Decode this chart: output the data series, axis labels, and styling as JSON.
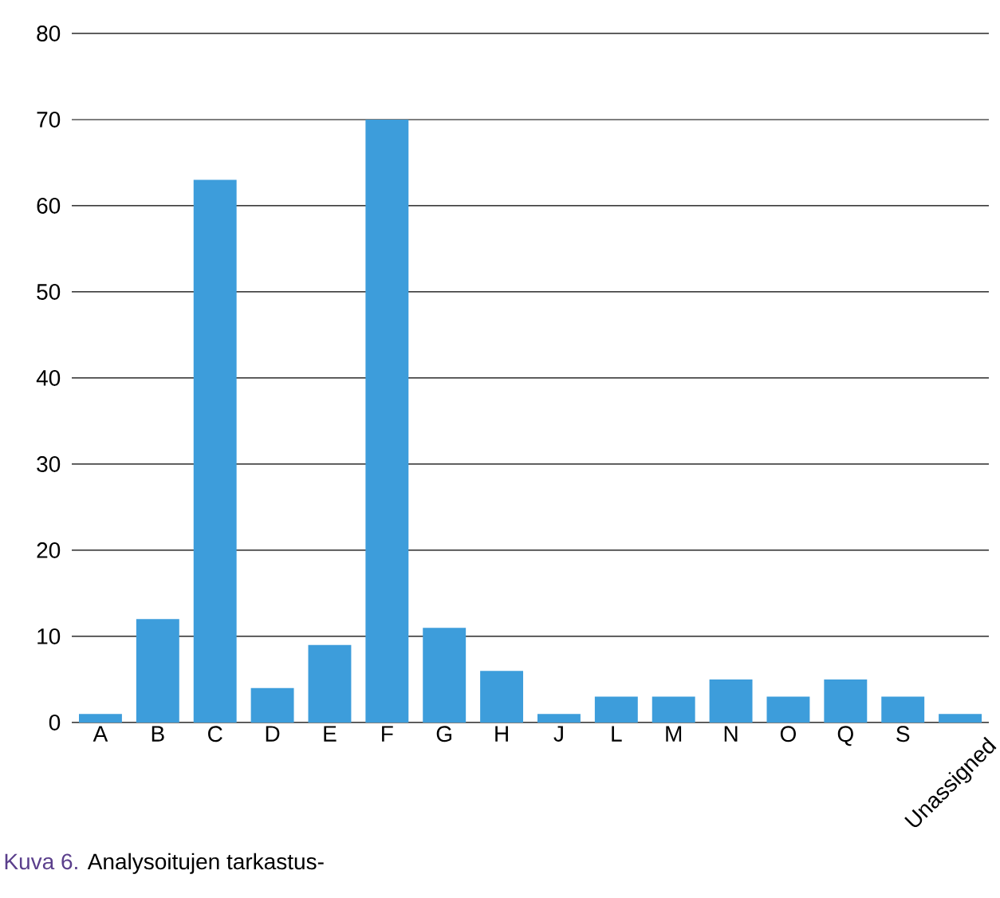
{
  "chart_data": {
    "type": "bar",
    "categories": [
      "A",
      "B",
      "C",
      "D",
      "E",
      "F",
      "G",
      "H",
      "J",
      "L",
      "M",
      "N",
      "O",
      "Q",
      "S",
      "Unassigned"
    ],
    "values": [
      1,
      12,
      63,
      4,
      9,
      70,
      11,
      6,
      1,
      3,
      3,
      5,
      3,
      5,
      3,
      1
    ],
    "color": "#3d9ddb",
    "ylim": [
      0,
      80
    ],
    "yticks": [
      0,
      10,
      20,
      30,
      40,
      50,
      60,
      70,
      80
    ],
    "grid": "y",
    "annotations": [
      "Kuva 6.",
      "Analysoitujen tarkastus-"
    ]
  }
}
